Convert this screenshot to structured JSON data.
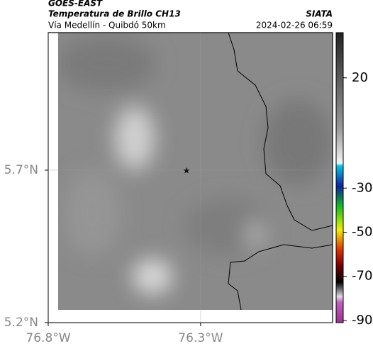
{
  "header": {
    "title": "GOES-EAST",
    "subtitle": "Temperatura de Brillo CH13",
    "route": "Vía Medellín - Quibdó 50km",
    "agency": "SIATA",
    "datetime": "2024-02-26 06:59"
  },
  "map": {
    "xlim": [
      -76.8,
      -75.867
    ],
    "ylim": [
      5.2,
      6.151
    ],
    "xticks": [
      {
        "value": -76.8,
        "label": "76.8°W"
      },
      {
        "value": -76.3,
        "label": "76.3°W"
      }
    ],
    "yticks": [
      {
        "value": 5.7,
        "label": "5.7°N"
      },
      {
        "value": 5.2,
        "label": "5.2°N"
      }
    ],
    "grid": true
  },
  "colorbar": {
    "lim": [
      -91,
      40.5
    ],
    "ticks": [
      20,
      -30,
      -50,
      -70,
      -90
    ]
  }
}
